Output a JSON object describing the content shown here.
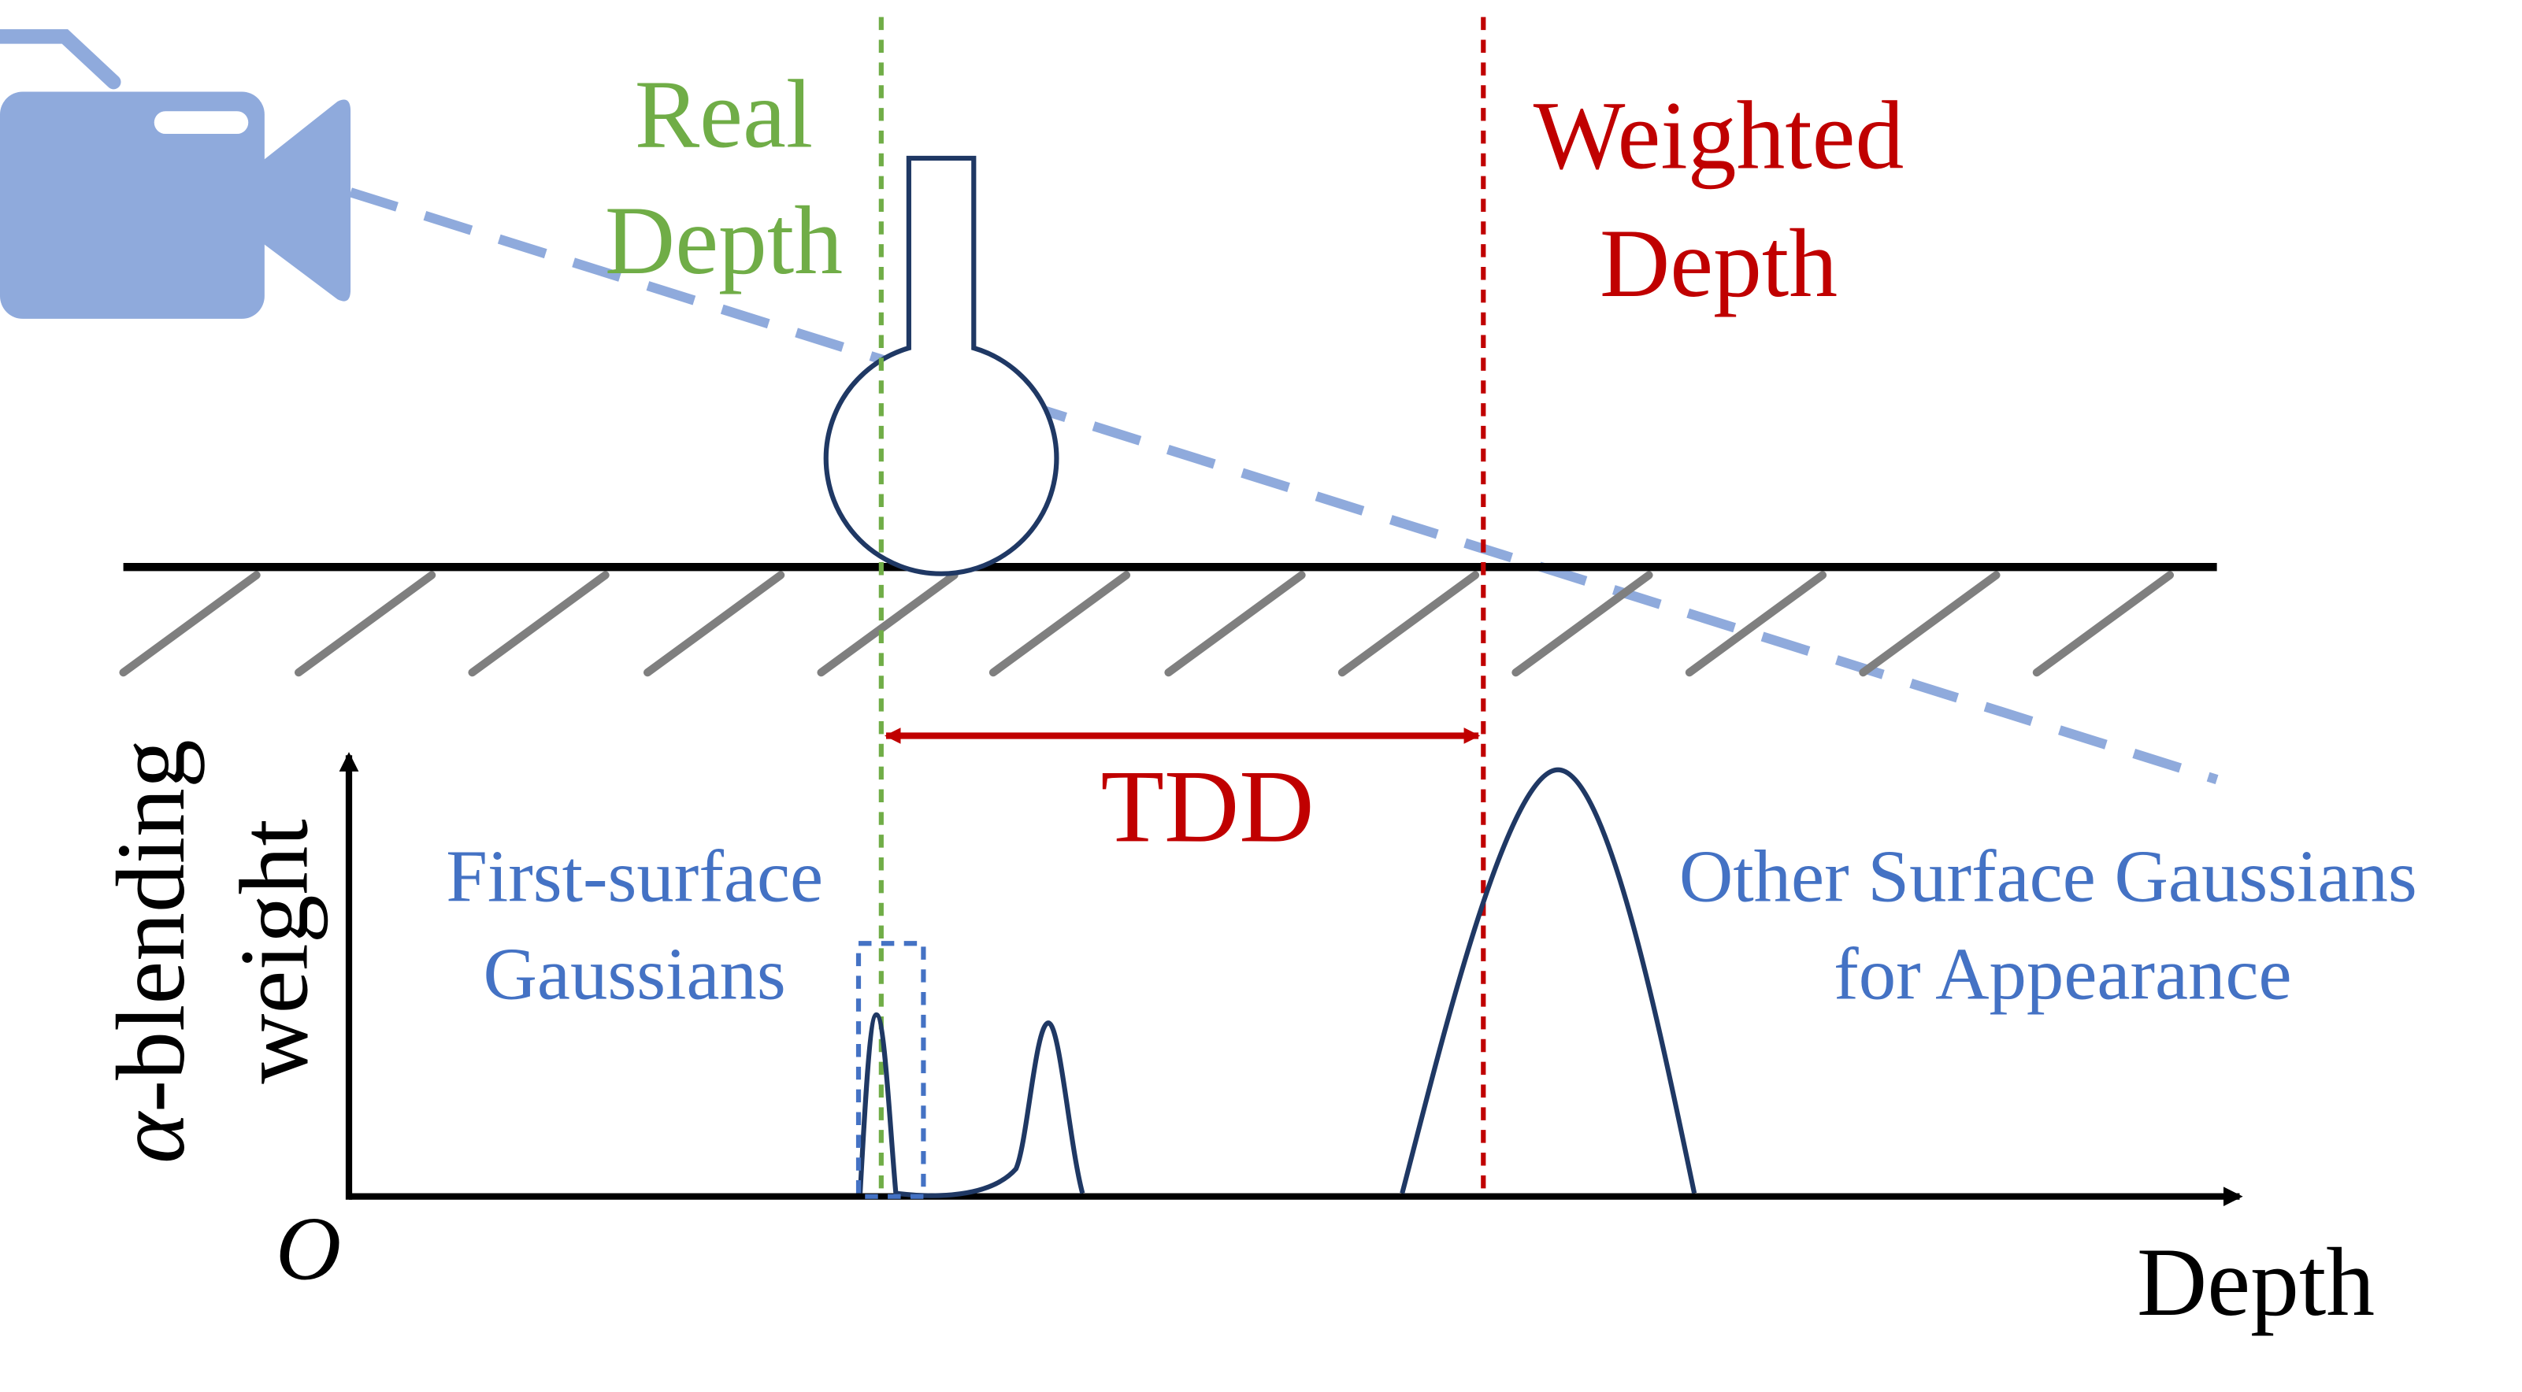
{
  "labels": {
    "real_depth_line1": "Real",
    "real_depth_line2": "Depth",
    "weighted_depth_line1": "Weighted",
    "weighted_depth_line2": "Depth",
    "tdd": "TDD",
    "first_surface_line1": "First-surface",
    "first_surface_line2": "Gaussians",
    "other_surface_line1": "Other Surface Gaussians",
    "other_surface_line2": "for Appearance",
    "y_axis_alpha": "α",
    "y_axis_line1_rest": "-blending",
    "y_axis_line2": "weight",
    "origin": "O",
    "x_axis": "Depth"
  },
  "colors": {
    "real_depth": "#70ad47",
    "weighted_depth": "#c00000",
    "gaussian_label": "#4472c4",
    "camera": "#8faadc",
    "curve": "#1f3864",
    "ground_hatch": "#7f7f7f",
    "axis": "#000000"
  },
  "icons": {
    "camera": "video-camera-icon",
    "object": "flask-icon"
  }
}
